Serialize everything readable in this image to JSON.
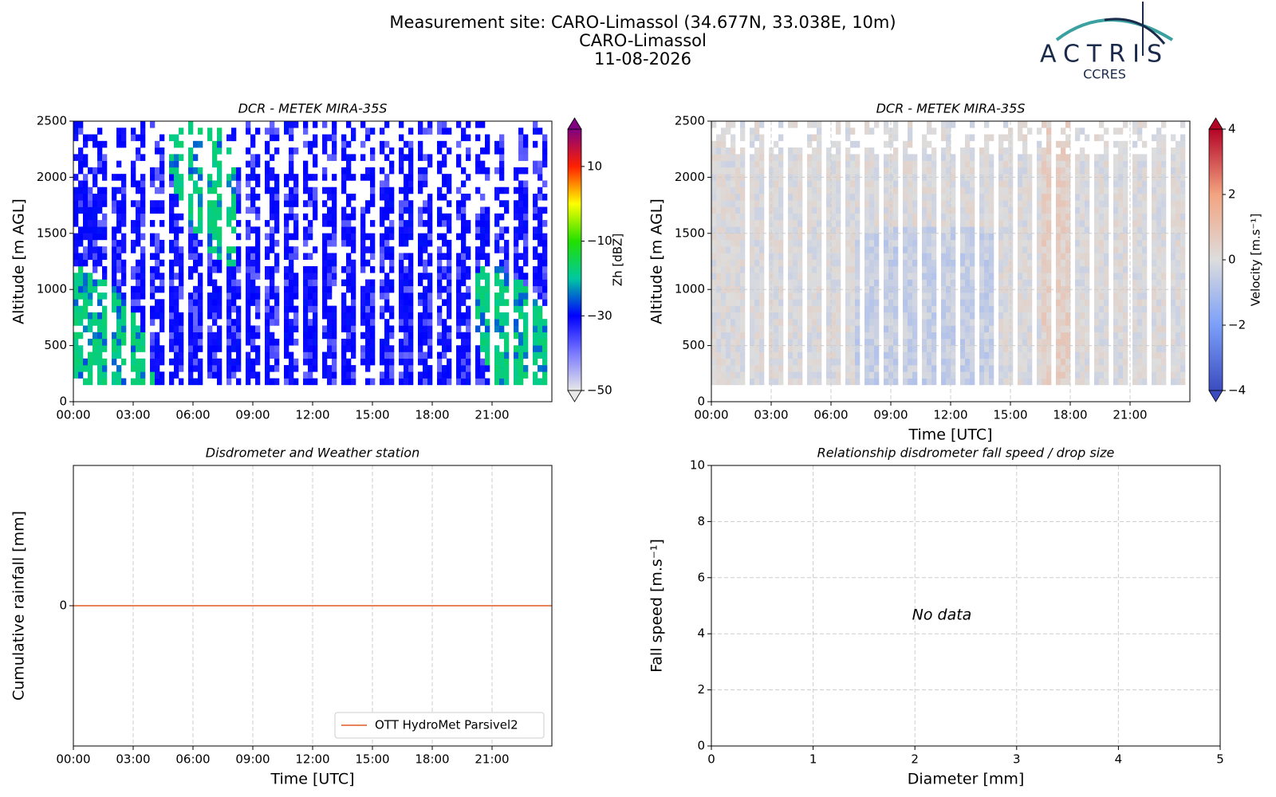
{
  "header": {
    "lines": [
      "Measurement site: CARO-Limassol (34.677N, 33.038E, 10m)",
      "CARO-Limassol",
      "11-08-2026"
    ],
    "logo": {
      "name": "ACTRIS",
      "subtitle": "CCRES"
    }
  },
  "chart_data": [
    {
      "type": "heatmap",
      "title": "DCR - METEK MIRA-35S",
      "ylabel": "Altitude [m AGL]",
      "xlim": [
        0,
        24
      ],
      "xticks": [
        {
          "value": 0,
          "label": "00:00"
        },
        {
          "value": 3,
          "label": "03:00"
        },
        {
          "value": 6,
          "label": "06:00"
        },
        {
          "value": 9,
          "label": "09:00"
        },
        {
          "value": 12,
          "label": "12:00"
        },
        {
          "value": 15,
          "label": "15:00"
        },
        {
          "value": 18,
          "label": "18:00"
        },
        {
          "value": 21,
          "label": "21:00"
        }
      ],
      "ylim": [
        0,
        2500
      ],
      "yticks": [
        0,
        500,
        1000,
        1500,
        2000,
        2500
      ],
      "grid": false,
      "colorbar": {
        "label": "Zh [dBZ]",
        "clim": [
          -50,
          20
        ],
        "ticks": [
          {
            "value": -50,
            "label": "−50"
          },
          {
            "value": -30,
            "label": "−30"
          },
          {
            "value": -10,
            "label": "−10"
          },
          10
        ],
        "colors": [
          "#e8e8e8",
          "#7a7aff",
          "#0000ff",
          "#00c8a0",
          "#22e000",
          "#ffff00",
          "#ff2000",
          "#800080"
        ]
      }
    },
    {
      "type": "heatmap",
      "title": "DCR - METEK MIRA-35S",
      "ylabel": "Altitude [m AGL]",
      "xlabel": "Time [UTC]",
      "xlim": [
        0,
        24
      ],
      "xticks": [
        {
          "value": 0,
          "label": "00:00"
        },
        {
          "value": 3,
          "label": "03:00"
        },
        {
          "value": 6,
          "label": "06:00"
        },
        {
          "value": 9,
          "label": "09:00"
        },
        {
          "value": 12,
          "label": "12:00"
        },
        {
          "value": 15,
          "label": "15:00"
        },
        {
          "value": 18,
          "label": "18:00"
        },
        {
          "value": 21,
          "label": "21:00"
        }
      ],
      "ylim": [
        0,
        2500
      ],
      "yticks": [
        0,
        500,
        1000,
        1500,
        2000,
        2500
      ],
      "grid": true,
      "colorbar": {
        "label": "Velocity [m.s⁻¹]",
        "clim": [
          -4,
          4
        ],
        "ticks": [
          {
            "value": -4,
            "label": "−4"
          },
          {
            "value": -2,
            "label": "−2"
          },
          0,
          2,
          4
        ],
        "colors": [
          "#3b4cc0",
          "#7b9ff9",
          "#dddddd",
          "#f3a481",
          "#b40426"
        ]
      }
    },
    {
      "type": "line",
      "title": "Disdrometer and Weather station",
      "ylabel": "Cumulative rainfall [mm]",
      "xlabel": "Time [UTC]",
      "xlim": [
        0,
        24
      ],
      "xticks": [
        {
          "value": 0,
          "label": "00:00"
        },
        {
          "value": 3,
          "label": "03:00"
        },
        {
          "value": 6,
          "label": "06:00"
        },
        {
          "value": 9,
          "label": "09:00"
        },
        {
          "value": 12,
          "label": "12:00"
        },
        {
          "value": 15,
          "label": "15:00"
        },
        {
          "value": 18,
          "label": "18:00"
        },
        {
          "value": 21,
          "label": "21:00"
        }
      ],
      "ylim": [
        -1,
        1
      ],
      "yticks": [
        0
      ],
      "grid": true,
      "legend": "lower right",
      "series": [
        {
          "name": "OTT HydroMet Parsivel2",
          "color": "#e8825a",
          "x": [
            0,
            24
          ],
          "values": [
            0,
            0
          ]
        }
      ]
    },
    {
      "type": "scatter",
      "title": "Relationship disdrometer fall speed / drop size",
      "ylabel": "Fall speed [m.s⁻¹]",
      "xlabel": "Diameter [mm]",
      "xlim": [
        0,
        5
      ],
      "xticks": [
        0,
        1,
        2,
        3,
        4,
        5
      ],
      "ylim": [
        0,
        10
      ],
      "yticks": [
        0,
        2,
        4,
        6,
        8,
        10
      ],
      "grid": true,
      "annotation": "No data"
    }
  ]
}
